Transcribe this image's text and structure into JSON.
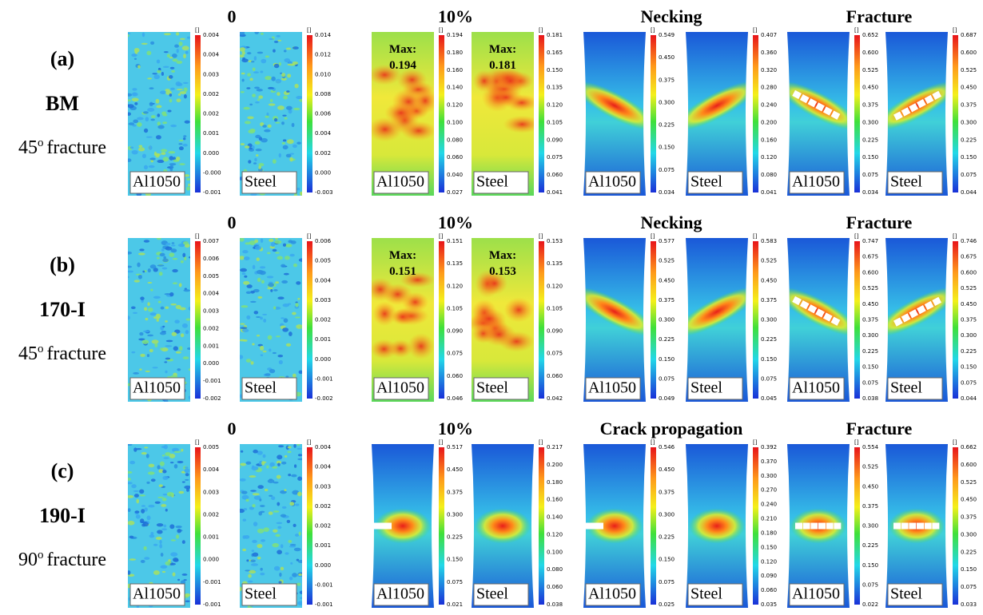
{
  "rows": [
    {
      "label": "(a)",
      "material": "BM",
      "angle": "45",
      "degree": "o",
      "fracture": "fracture",
      "panels": [
        {
          "stage": "0",
          "specimens": [
            {
              "name": "Al1050",
              "unit": "[]",
              "ticks": [
                "0.004",
                "0.004",
                "0.003",
                "0.002",
                "0.002",
                "0.001",
                "0.000",
                "-0.000",
                "-0.001"
              ]
            },
            {
              "name": "Steel",
              "unit": "[]",
              "ticks": [
                "0.014",
                "0.012",
                "0.010",
                "0.008",
                "0.006",
                "0.004",
                "0.002",
                "0.000",
                "-0.003"
              ]
            }
          ]
        },
        {
          "stage": "10%",
          "specimens": [
            {
              "name": "Al1050",
              "unit": "[]",
              "max_label": "Max:",
              "max": "0.194",
              "ticks": [
                "0.194",
                "0.180",
                "0.160",
                "0.140",
                "0.120",
                "0.100",
                "0.080",
                "0.060",
                "0.040",
                "0.027"
              ]
            },
            {
              "name": "Steel",
              "unit": "[]",
              "max_label": "Max:",
              "max": "0.181",
              "ticks": [
                "0.181",
                "0.165",
                "0.150",
                "0.135",
                "0.120",
                "0.105",
                "0.090",
                "0.075",
                "0.060",
                "0.041"
              ]
            }
          ]
        },
        {
          "stage": "Necking",
          "specimens": [
            {
              "name": "Al1050",
              "unit": "[]",
              "ticks": [
                "0.549",
                "0.450",
                "0.375",
                "0.300",
                "0.225",
                "0.150",
                "0.075",
                "0.034"
              ]
            },
            {
              "name": "Steel",
              "unit": "[]",
              "ticks": [
                "0.407",
                "0.360",
                "0.320",
                "0.280",
                "0.240",
                "0.200",
                "0.160",
                "0.120",
                "0.080",
                "0.041"
              ]
            }
          ]
        },
        {
          "stage": "Fracture",
          "specimens": [
            {
              "name": "Al1050",
              "unit": "[]",
              "ticks": [
                "0.652",
                "0.600",
                "0.525",
                "0.450",
                "0.375",
                "0.300",
                "0.225",
                "0.150",
                "0.075",
                "0.034"
              ]
            },
            {
              "name": "Steel",
              "unit": "[]",
              "ticks": [
                "0.687",
                "0.600",
                "0.525",
                "0.450",
                "0.375",
                "0.300",
                "0.225",
                "0.150",
                "0.075",
                "0.044"
              ]
            }
          ]
        }
      ]
    },
    {
      "label": "(b)",
      "material": "170-I",
      "angle": "45",
      "degree": "o",
      "fracture": "fracture",
      "panels": [
        {
          "stage": "0",
          "specimens": [
            {
              "name": "Al1050",
              "unit": "[]",
              "ticks": [
                "0.007",
                "0.006",
                "0.005",
                "0.004",
                "0.003",
                "0.002",
                "0.001",
                "0.000",
                "-0.001",
                "-0.002"
              ]
            },
            {
              "name": "Steel",
              "unit": "[]",
              "ticks": [
                "0.006",
                "0.005",
                "0.004",
                "0.003",
                "0.002",
                "0.001",
                "0.000",
                "-0.001",
                "-0.002"
              ]
            }
          ]
        },
        {
          "stage": "10%",
          "specimens": [
            {
              "name": "Al1050",
              "unit": "[]",
              "max_label": "Max:",
              "max": "0.151",
              "ticks": [
                "0.151",
                "0.135",
                "0.120",
                "0.105",
                "0.090",
                "0.075",
                "0.060",
                "0.046"
              ]
            },
            {
              "name": "Steel",
              "unit": "[]",
              "max_label": "Max:",
              "max": "0.153",
              "ticks": [
                "0.153",
                "0.135",
                "0.120",
                "0.105",
                "0.090",
                "0.075",
                "0.060",
                "0.042"
              ]
            }
          ]
        },
        {
          "stage": "Necking",
          "specimens": [
            {
              "name": "Al1050",
              "unit": "[]",
              "ticks": [
                "0.577",
                "0.525",
                "0.450",
                "0.375",
                "0.300",
                "0.225",
                "0.150",
                "0.075",
                "0.049"
              ]
            },
            {
              "name": "Steel",
              "unit": "[]",
              "ticks": [
                "0.583",
                "0.525",
                "0.450",
                "0.375",
                "0.300",
                "0.225",
                "0.150",
                "0.075",
                "0.045"
              ]
            }
          ]
        },
        {
          "stage": "Fracture",
          "specimens": [
            {
              "name": "Al1050",
              "unit": "[]",
              "ticks": [
                "0.747",
                "0.675",
                "0.600",
                "0.525",
                "0.450",
                "0.375",
                "0.300",
                "0.225",
                "0.150",
                "0.075",
                "0.038"
              ]
            },
            {
              "name": "Steel",
              "unit": "[]",
              "ticks": [
                "0.746",
                "0.675",
                "0.600",
                "0.525",
                "0.450",
                "0.375",
                "0.300",
                "0.225",
                "0.150",
                "0.075",
                "0.044"
              ]
            }
          ]
        }
      ]
    },
    {
      "label": "(c)",
      "material": "190-I",
      "angle": "90",
      "degree": "o",
      "fracture": "fracture",
      "panels": [
        {
          "stage": "0",
          "specimens": [
            {
              "name": "Al1050",
              "unit": "[]",
              "ticks": [
                "0.005",
                "0.004",
                "0.003",
                "0.002",
                "0.001",
                "0.000",
                "-0.001",
                "-0.001"
              ]
            },
            {
              "name": "Steel",
              "unit": "[]",
              "ticks": [
                "0.004",
                "0.004",
                "0.003",
                "0.002",
                "0.002",
                "0.001",
                "0.000",
                "-0.001",
                "-0.001"
              ]
            }
          ]
        },
        {
          "stage": "10%",
          "specimens": [
            {
              "name": "Al1050",
              "unit": "[]",
              "ticks": [
                "0.517",
                "0.450",
                "0.375",
                "0.300",
                "0.225",
                "0.150",
                "0.075",
                "0.021"
              ]
            },
            {
              "name": "Steel",
              "unit": "[]",
              "ticks": [
                "0.217",
                "0.200",
                "0.180",
                "0.160",
                "0.140",
                "0.120",
                "0.100",
                "0.080",
                "0.060",
                "0.038"
              ]
            }
          ]
        },
        {
          "stage": "Crack propagation",
          "specimens": [
            {
              "name": "Al1050",
              "unit": "[]",
              "ticks": [
                "0.546",
                "0.450",
                "0.375",
                "0.300",
                "0.225",
                "0.150",
                "0.075",
                "0.025"
              ]
            },
            {
              "name": "Steel",
              "unit": "[]",
              "ticks": [
                "0.392",
                "0.370",
                "0.300",
                "0.270",
                "0.240",
                "0.210",
                "0.180",
                "0.150",
                "0.120",
                "0.090",
                "0.060",
                "0.035"
              ]
            }
          ]
        },
        {
          "stage": "Fracture",
          "specimens": [
            {
              "name": "Al1050",
              "unit": "[]",
              "ticks": [
                "0.554",
                "0.525",
                "0.450",
                "0.375",
                "0.300",
                "0.225",
                "0.150",
                "0.075",
                "0.022"
              ]
            },
            {
              "name": "Steel",
              "unit": "[]",
              "ticks": [
                "0.662",
                "0.600",
                "0.525",
                "0.450",
                "0.375",
                "0.300",
                "0.225",
                "0.150",
                "0.075",
                "0.033"
              ]
            }
          ]
        }
      ]
    }
  ]
}
